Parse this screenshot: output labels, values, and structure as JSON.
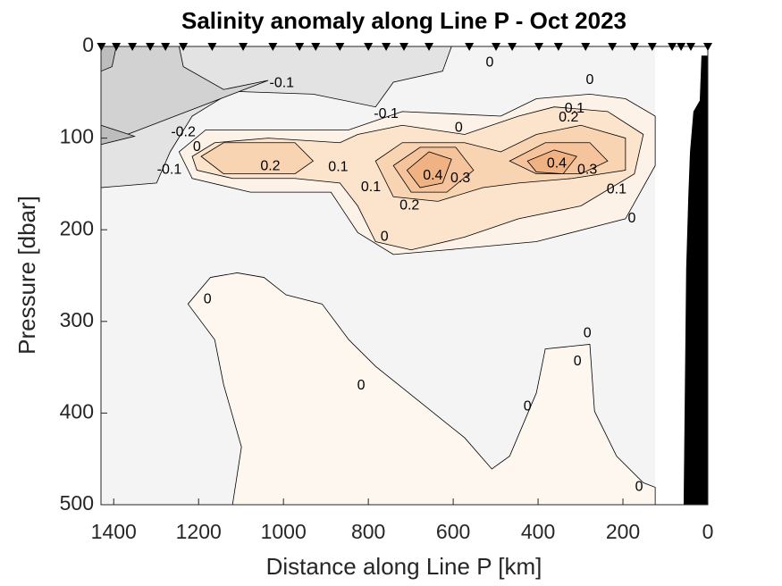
{
  "chart_data": {
    "type": "contour",
    "title": "Salinity anomaly along Line P - Oct 2023",
    "x_label": "Distance along Line P [km]",
    "y_label": "Pressure [dbar]",
    "xlim": [
      1430,
      0
    ],
    "ylim": [
      0,
      500
    ],
    "x_reversed": true,
    "y_reversed": true,
    "xticks": [
      1400,
      1200,
      1000,
      800,
      600,
      400,
      200,
      0
    ],
    "yticks": [
      0,
      100,
      200,
      300,
      400,
      500
    ],
    "background": {
      "color": "#f4f4f4",
      "x": [
        1430,
        124,
        124,
        1430
      ],
      "p": [
        0,
        0,
        500,
        500
      ]
    },
    "regions": [
      {
        "level": -0.1,
        "color": "#e3e3e3",
        "x": [
          1430,
          604,
          625,
          741,
          783,
          930,
          1120,
          1215,
          1267,
          1299,
          1430
        ],
        "p": [
          0,
          0,
          27,
          39,
          66,
          52,
          49,
          76,
          115,
          149,
          154
        ]
      },
      {
        "level": -0.2,
        "color": "#d2d2d2",
        "x": [
          1430,
          1246,
          1236,
          1141,
          1036,
          1430
        ],
        "p": [
          0,
          0,
          22,
          47,
          37,
          107
        ]
      },
      {
        "level": -0.3,
        "color": "#bdbdbd",
        "x": [
          1430,
          1394,
          1404,
          1430
        ],
        "p": [
          0,
          0,
          22,
          27
        ]
      },
      {
        "level": -0.3,
        "color": "#bdbdbd",
        "x": [
          1430,
          1351,
          1430
        ],
        "p": [
          86,
          98,
          107
        ]
      },
      {
        "level": 0,
        "color": "#fdf2e8",
        "x": [
          1246,
          1183,
          1015,
          846,
          720,
          488,
          404,
          278,
          194,
          124,
          124,
          194,
          404,
          615,
          741,
          825,
          888,
          1078,
          1215
        ],
        "p": [
          115,
          91,
          91,
          91,
          71,
          76,
          57,
          52,
          57,
          76,
          130,
          188,
          213,
          222,
          227,
          203,
          159,
          159,
          144
        ]
      },
      {
        "level": 0.1,
        "color": "#fbe3cc",
        "x": [
          1215,
          1162,
          1036,
          867,
          825,
          720,
          573,
          446,
          362,
          236,
          152,
          173,
          299,
          446,
          573,
          699,
          783,
          825,
          867,
          973,
          1120,
          1204
        ],
        "p": [
          120,
          105,
          100,
          105,
          96,
          86,
          96,
          76,
          66,
          71,
          96,
          139,
          174,
          188,
          208,
          222,
          213,
          174,
          149,
          144,
          144,
          135
        ]
      },
      {
        "level": 0.2,
        "color": "#f8d4b2",
        "x": [
          1194,
          1141,
          973,
          930,
          973,
          1141
        ],
        "p": [
          120,
          105,
          105,
          125,
          139,
          139
        ]
      },
      {
        "level": 0.2,
        "color": "#f8d4b2",
        "x": [
          783,
          720,
          573,
          488,
          404,
          299,
          194,
          194,
          320,
          446,
          530,
          636,
          741
        ],
        "p": [
          125,
          105,
          105,
          115,
          96,
          86,
          100,
          135,
          144,
          149,
          154,
          169,
          164
        ]
      },
      {
        "level": 0.3,
        "color": "#f5c49c",
        "x": [
          741,
          678,
          594,
          552,
          615,
          699
        ],
        "p": [
          130,
          110,
          110,
          135,
          159,
          159
        ]
      },
      {
        "level": 0.3,
        "color": "#f5c49c",
        "x": [
          467,
          383,
          278,
          236,
          299,
          404
        ],
        "p": [
          125,
          105,
          105,
          125,
          139,
          139
        ]
      },
      {
        "level": 0.4,
        "color": "#f1b283",
        "x": [
          709,
          657,
          604,
          625,
          678
        ],
        "p": [
          135,
          115,
          123,
          149,
          154
        ]
      },
      {
        "level": 0.4,
        "color": "#f1b283",
        "x": [
          425,
          362,
          309,
          341,
          404
        ],
        "p": [
          125,
          113,
          120,
          139,
          137
        ]
      },
      {
        "level": 0,
        "color": "#fdf7f0",
        "x": [
          1225,
          1172,
          1109,
          1046,
          994,
          909,
          846,
          783,
          678,
          573,
          509,
          467,
          404,
          383,
          278,
          267,
          215,
          152,
          124,
          124,
          1120,
          1099,
          1141,
          1162
        ],
        "p": [
          281,
          252,
          247,
          252,
          271,
          281,
          320,
          349,
          388,
          427,
          461,
          447,
          378,
          330,
          325,
          398,
          447,
          476,
          481,
          500,
          500,
          437,
          369,
          320
        ]
      }
    ],
    "bathymetry": {
      "color": "#000000",
      "x": [
        57,
        51,
        46,
        42,
        34,
        19,
        15,
        0,
        0
      ],
      "p": [
        500,
        242,
        164,
        115,
        71,
        59,
        10,
        10,
        500
      ]
    },
    "stations": [
      1429,
      1394,
      1356,
      1314,
      1278,
      1236,
      1168,
      1095,
      1025,
      962,
      924,
      867,
      800,
      758,
      716,
      657,
      562,
      499,
      461,
      398,
      352,
      288,
      225,
      173,
      131,
      84,
      63,
      40,
      0
    ],
    "contour_labels": [
      {
        "value": -0.1,
        "x": 1004,
        "p": 40
      },
      {
        "value": -0.1,
        "x": 758,
        "p": 74
      },
      {
        "value": -0.2,
        "x": 1236,
        "p": 94
      },
      {
        "value": -0.1,
        "x": 1269,
        "p": 135
      },
      {
        "value": 0,
        "x": 1204,
        "p": 110
      },
      {
        "value": 0.2,
        "x": 1031,
        "p": 131
      },
      {
        "value": 0.1,
        "x": 871,
        "p": 132
      },
      {
        "value": 0,
        "x": 587,
        "p": 89
      },
      {
        "value": 0.1,
        "x": 794,
        "p": 154
      },
      {
        "value": 0.2,
        "x": 703,
        "p": 174
      },
      {
        "value": 0.4,
        "x": 648,
        "p": 141
      },
      {
        "value": 0.3,
        "x": 583,
        "p": 144
      },
      {
        "value": 0.4,
        "x": 356,
        "p": 128
      },
      {
        "value": 0.3,
        "x": 284,
        "p": 135
      },
      {
        "value": 0.2,
        "x": 328,
        "p": 78
      },
      {
        "value": 0.1,
        "x": 314,
        "p": 68
      },
      {
        "value": 0,
        "x": 278,
        "p": 37
      },
      {
        "value": 0,
        "x": 514,
        "p": 18
      },
      {
        "value": 0.1,
        "x": 215,
        "p": 156
      },
      {
        "value": 0,
        "x": 179,
        "p": 188
      },
      {
        "value": 0,
        "x": 762,
        "p": 208
      },
      {
        "value": 0,
        "x": 1179,
        "p": 276
      },
      {
        "value": 0,
        "x": 817,
        "p": 370
      },
      {
        "value": 0,
        "x": 425,
        "p": 393
      },
      {
        "value": 0,
        "x": 307,
        "p": 344
      },
      {
        "value": 0,
        "x": 284,
        "p": 313
      },
      {
        "value": 0,
        "x": 162,
        "p": 481
      }
    ]
  }
}
